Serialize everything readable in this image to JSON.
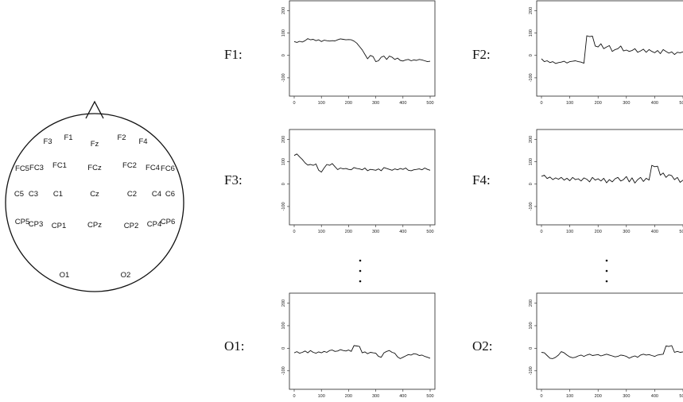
{
  "head_map": {
    "electrodes": [
      "F3",
      "F1",
      "Fz",
      "F2",
      "F4",
      "FC5",
      "FC3",
      "FC1",
      "FCz",
      "FC2",
      "FC4",
      "FC6",
      "C5",
      "C3",
      "C1",
      "Cz",
      "C2",
      "C4",
      "C6",
      "CP5",
      "CP3",
      "CP1",
      "CPz",
      "CP2",
      "CP4",
      "CP6",
      "O1",
      "O2"
    ]
  },
  "ellipsis": ":",
  "chart_data": [
    {
      "type": "line",
      "channel_label": "F1:",
      "xlim": [
        0,
        500
      ],
      "ylim": [
        -150,
        230
      ],
      "xticks": [
        "0",
        "100",
        "200",
        "300",
        "400",
        "500"
      ],
      "yticks": [
        "-100",
        "0",
        "100",
        "200"
      ],
      "x": [
        0,
        10,
        20,
        30,
        40,
        50,
        60,
        70,
        80,
        90,
        100,
        110,
        120,
        130,
        140,
        150,
        160,
        170,
        180,
        190,
        200,
        210,
        220,
        230,
        240,
        250,
        260,
        270,
        280,
        290,
        300,
        310,
        320,
        330,
        340,
        350,
        360,
        370,
        380,
        390,
        400,
        410,
        420,
        430,
        440,
        450,
        460,
        470,
        480,
        490,
        500
      ],
      "values": [
        62,
        58,
        63,
        60,
        66,
        75,
        70,
        72,
        66,
        70,
        62,
        68,
        66,
        64,
        66,
        65,
        70,
        74,
        72,
        70,
        71,
        70,
        64,
        55,
        40,
        25,
        5,
        -15,
        0,
        -5,
        -28,
        -24,
        -8,
        -3,
        -18,
        -3,
        -8,
        -18,
        -12,
        -22,
        -25,
        -20,
        -18,
        -24,
        -20,
        -22,
        -18,
        -20,
        -24,
        -28,
        -26
      ]
    },
    {
      "type": "line",
      "channel_label": "F2:",
      "xlim": [
        0,
        500
      ],
      "ylim": [
        -150,
        230
      ],
      "xticks": [
        "0",
        "100",
        "200",
        "300",
        "400",
        "500"
      ],
      "yticks": [
        "-100",
        "0",
        "100",
        "200"
      ],
      "x": [
        0,
        10,
        20,
        30,
        40,
        50,
        60,
        70,
        80,
        90,
        100,
        110,
        120,
        130,
        140,
        150,
        160,
        170,
        180,
        190,
        200,
        210,
        220,
        230,
        240,
        250,
        260,
        270,
        280,
        290,
        300,
        310,
        320,
        330,
        340,
        350,
        360,
        370,
        380,
        390,
        400,
        410,
        420,
        430,
        440,
        450,
        460,
        470,
        480,
        490,
        500
      ],
      "values": [
        -15,
        -28,
        -24,
        -32,
        -28,
        -36,
        -32,
        -30,
        -26,
        -34,
        -28,
        -26,
        -24,
        -28,
        -30,
        -35,
        88,
        84,
        86,
        42,
        38,
        52,
        30,
        38,
        44,
        18,
        26,
        30,
        42,
        20,
        24,
        18,
        22,
        30,
        14,
        20,
        28,
        14,
        26,
        18,
        12,
        22,
        8,
        26,
        18,
        10,
        16,
        4,
        14,
        12,
        16
      ]
    },
    {
      "type": "line",
      "channel_label": "F3:",
      "xlim": [
        0,
        500
      ],
      "ylim": [
        -150,
        230
      ],
      "xticks": [
        "0",
        "100",
        "200",
        "300",
        "400",
        "500"
      ],
      "yticks": [
        "-100",
        "0",
        "100",
        "200"
      ],
      "x": [
        0,
        10,
        20,
        30,
        40,
        50,
        60,
        70,
        80,
        90,
        100,
        110,
        120,
        130,
        140,
        150,
        160,
        170,
        180,
        190,
        200,
        210,
        220,
        230,
        240,
        250,
        260,
        270,
        280,
        290,
        300,
        310,
        320,
        330,
        340,
        350,
        360,
        370,
        380,
        390,
        400,
        410,
        420,
        430,
        440,
        450,
        460,
        470,
        480,
        490,
        500
      ],
      "values": [
        128,
        135,
        122,
        110,
        95,
        85,
        88,
        84,
        90,
        62,
        54,
        72,
        88,
        84,
        92,
        78,
        65,
        72,
        68,
        70,
        66,
        64,
        74,
        70,
        68,
        64,
        72,
        60,
        66,
        64,
        62,
        68,
        60,
        74,
        70,
        66,
        62,
        68,
        64,
        70,
        66,
        72,
        62,
        60,
        64,
        66,
        68,
        64,
        72,
        66,
        62
      ]
    },
    {
      "type": "line",
      "channel_label": "F4:",
      "xlim": [
        0,
        500
      ],
      "ylim": [
        -150,
        230
      ],
      "xticks": [
        "0",
        "100",
        "200",
        "300",
        "400",
        "500"
      ],
      "yticks": [
        "-100",
        "0",
        "100",
        "200"
      ],
      "x": [
        0,
        10,
        20,
        30,
        40,
        50,
        60,
        70,
        80,
        90,
        100,
        110,
        120,
        130,
        140,
        150,
        160,
        170,
        180,
        190,
        200,
        210,
        220,
        230,
        240,
        250,
        260,
        270,
        280,
        290,
        300,
        310,
        320,
        330,
        340,
        350,
        360,
        370,
        380,
        390,
        400,
        410,
        420,
        430,
        440,
        450,
        460,
        470,
        480,
        490,
        500
      ],
      "values": [
        35,
        40,
        25,
        32,
        20,
        28,
        22,
        30,
        18,
        26,
        15,
        30,
        20,
        24,
        14,
        28,
        22,
        10,
        30,
        18,
        24,
        14,
        26,
        6,
        20,
        10,
        24,
        30,
        14,
        20,
        34,
        10,
        28,
        5,
        20,
        30,
        12,
        26,
        18,
        84,
        78,
        80,
        40,
        50,
        30,
        42,
        38,
        20,
        30,
        8,
        18
      ]
    },
    {
      "type": "line",
      "channel_label": "O1:",
      "xlim": [
        0,
        500
      ],
      "ylim": [
        -150,
        230
      ],
      "xticks": [
        "0",
        "100",
        "200",
        "300",
        "400",
        "500"
      ],
      "yticks": [
        "-100",
        "0",
        "100",
        "200"
      ],
      "x": [
        0,
        10,
        20,
        30,
        40,
        50,
        60,
        70,
        80,
        90,
        100,
        110,
        120,
        130,
        140,
        150,
        160,
        170,
        180,
        190,
        200,
        210,
        220,
        230,
        240,
        250,
        260,
        270,
        280,
        290,
        300,
        310,
        320,
        330,
        340,
        350,
        360,
        370,
        380,
        390,
        400,
        410,
        420,
        430,
        440,
        450,
        460,
        470,
        480,
        490,
        500
      ],
      "values": [
        -20,
        -15,
        -22,
        -18,
        -12,
        -20,
        -10,
        -18,
        -22,
        -16,
        -20,
        -14,
        -18,
        -10,
        -8,
        -14,
        -12,
        -6,
        -10,
        -12,
        -8,
        -14,
        12,
        10,
        8,
        -20,
        -16,
        -24,
        -18,
        -20,
        -22,
        -36,
        -40,
        -20,
        -14,
        -10,
        -18,
        -22,
        -38,
        -46,
        -40,
        -34,
        -28,
        -30,
        -24,
        -26,
        -32,
        -30,
        -36,
        -40,
        -44
      ]
    },
    {
      "type": "line",
      "channel_label": "O2:",
      "xlim": [
        0,
        500
      ],
      "ylim": [
        -150,
        230
      ],
      "xticks": [
        "0",
        "100",
        "200",
        "300",
        "400",
        "500"
      ],
      "yticks": [
        "-100",
        "0",
        "100",
        "200"
      ],
      "x": [
        0,
        10,
        20,
        30,
        40,
        50,
        60,
        70,
        80,
        90,
        100,
        110,
        120,
        130,
        140,
        150,
        160,
        170,
        180,
        190,
        200,
        210,
        220,
        230,
        240,
        250,
        260,
        270,
        280,
        290,
        300,
        310,
        320,
        330,
        340,
        350,
        360,
        370,
        380,
        390,
        400,
        410,
        420,
        430,
        440,
        450,
        460,
        470,
        480,
        490,
        500
      ],
      "values": [
        -18,
        -20,
        -32,
        -44,
        -46,
        -40,
        -30,
        -15,
        -20,
        -30,
        -38,
        -42,
        -40,
        -34,
        -30,
        -36,
        -30,
        -26,
        -32,
        -30,
        -28,
        -34,
        -30,
        -26,
        -30,
        -34,
        -38,
        -36,
        -30,
        -32,
        -36,
        -44,
        -38,
        -34,
        -40,
        -30,
        -26,
        -30,
        -28,
        -32,
        -36,
        -30,
        -28,
        -26,
        10,
        8,
        12,
        -18,
        -14,
        -18,
        -16
      ]
    }
  ]
}
